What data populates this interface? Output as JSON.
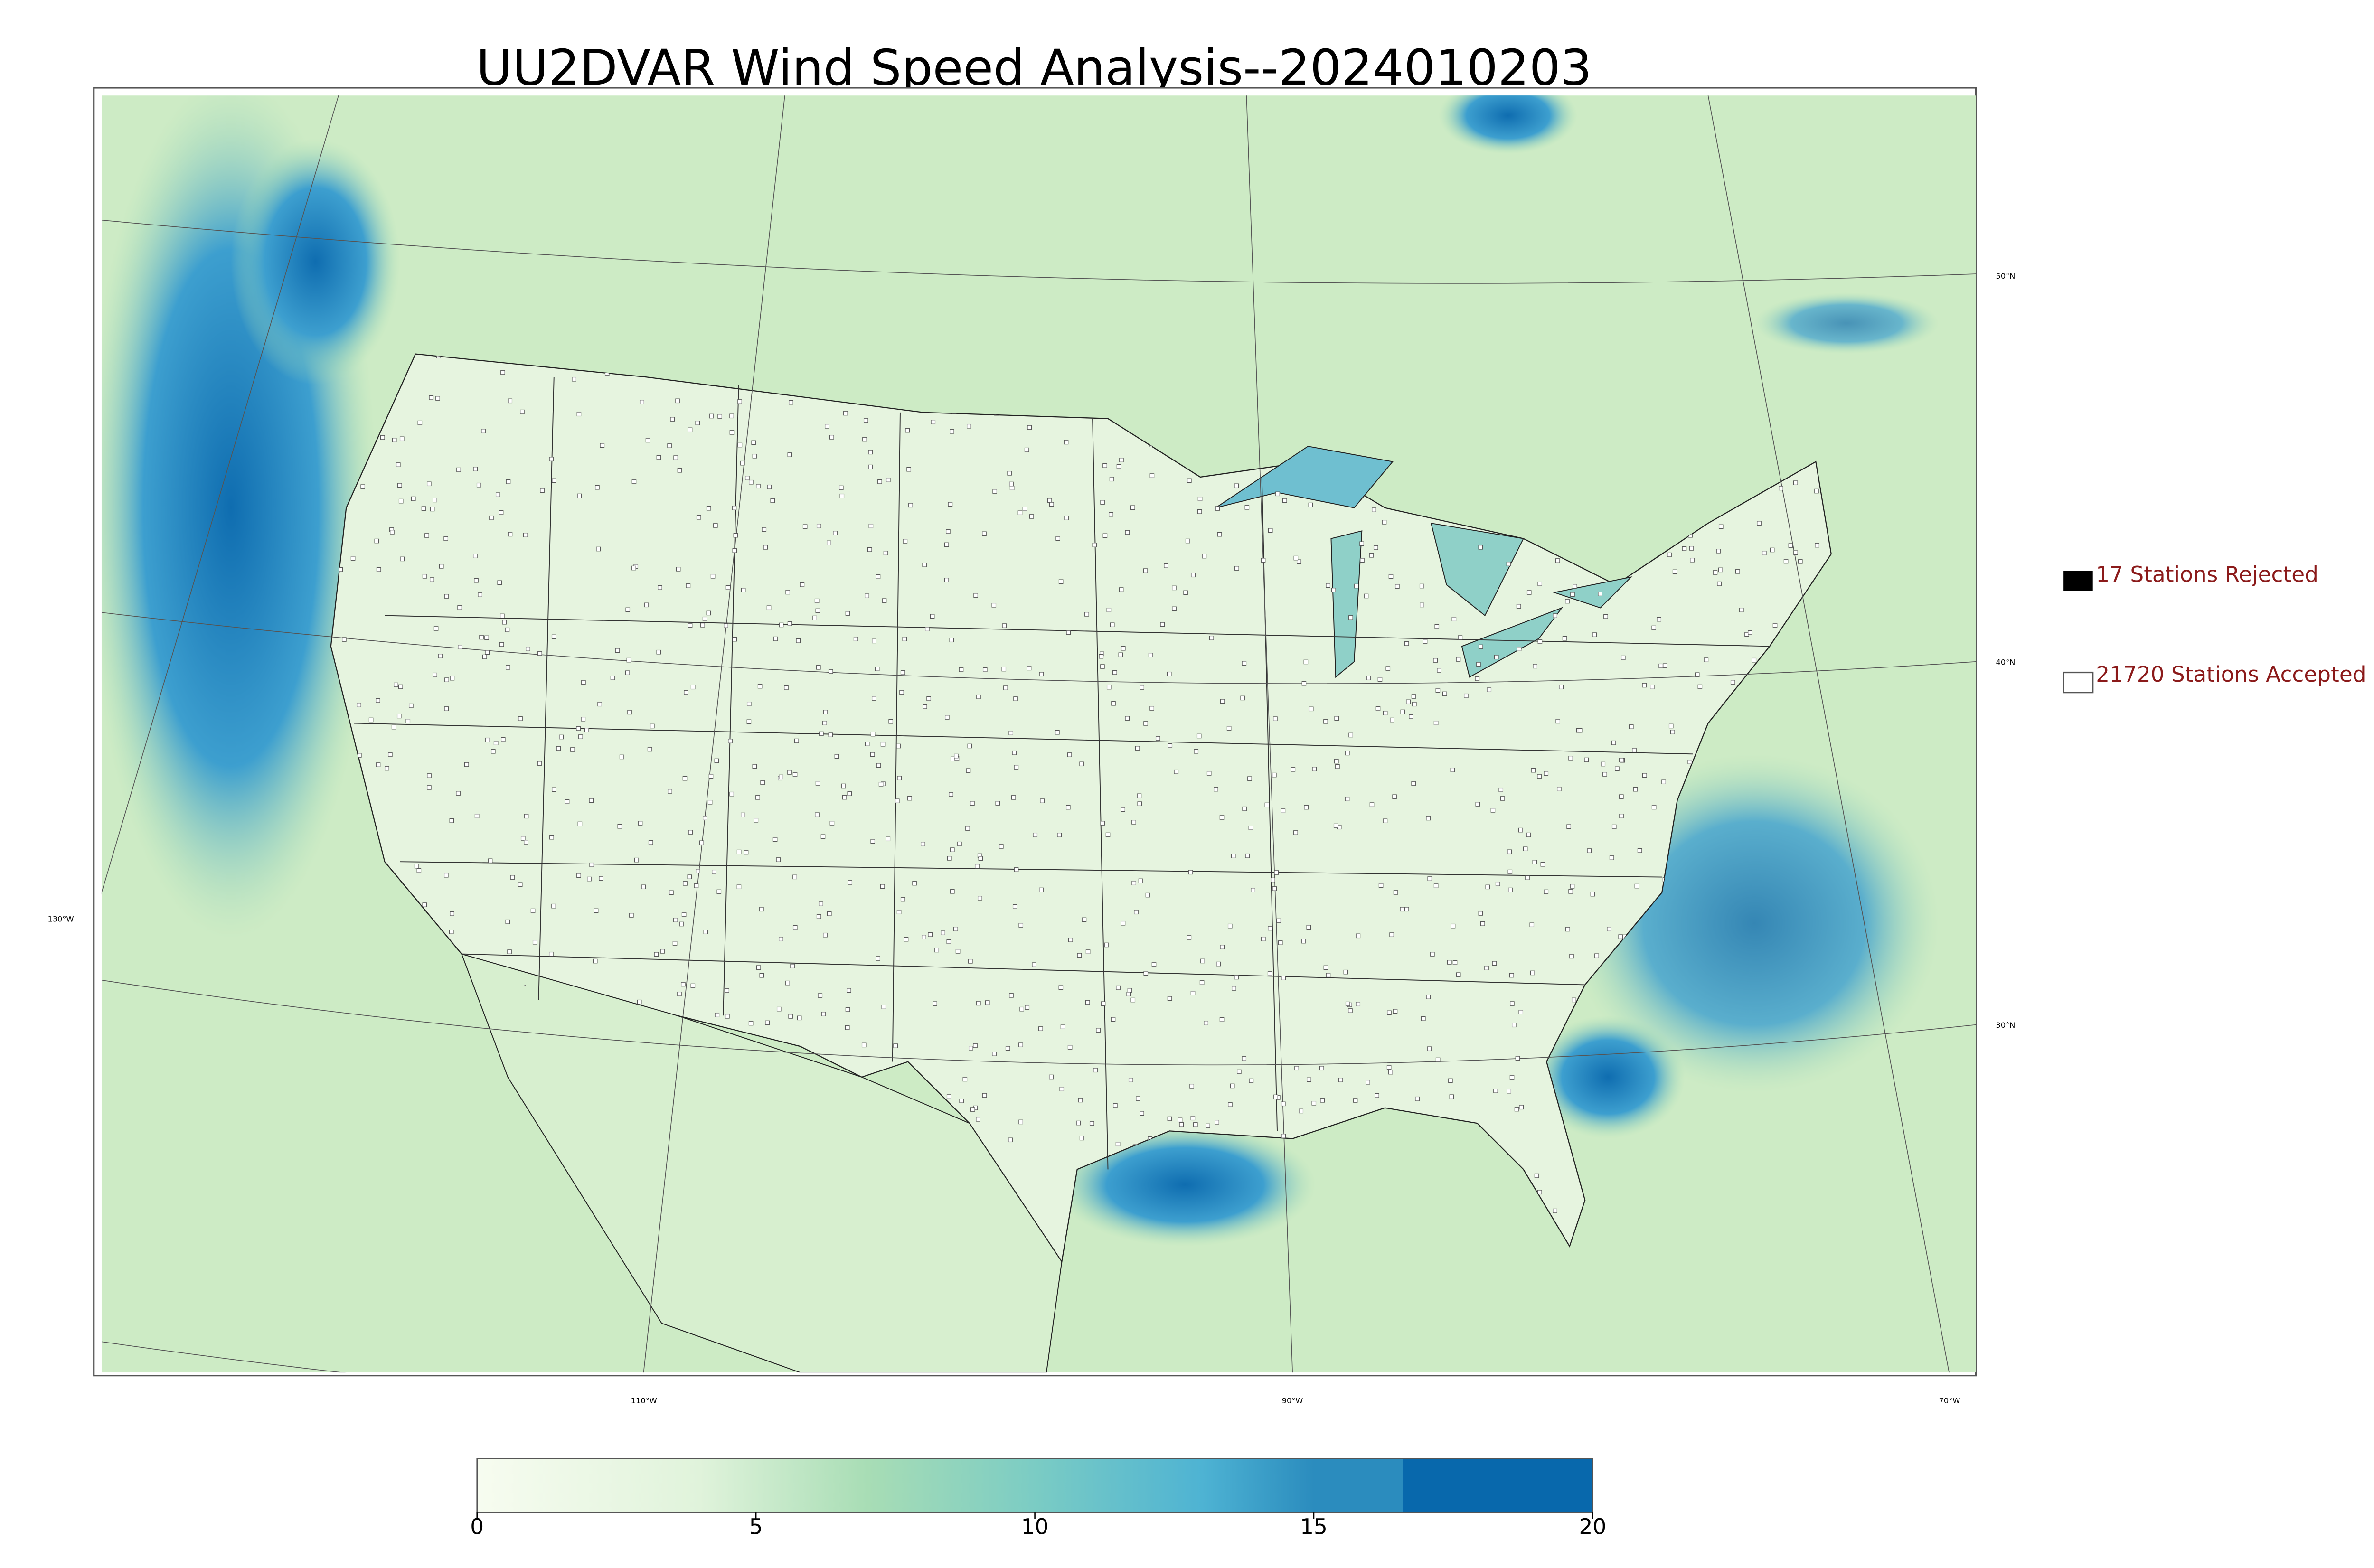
{
  "title": "UU2DVAR Wind Speed Analysis--2024010203",
  "map": {
    "lat_labels": [
      "50°N",
      "40°N",
      "30°N"
    ],
    "lon_labels": [
      "130°W",
      "110°W",
      "90°W",
      "70°W"
    ]
  },
  "legend": {
    "rejected": "17 Stations Rejected",
    "accepted": "21720 Stations Accepted"
  },
  "colorbar": {
    "range": [
      0,
      20
    ],
    "ticks": [
      0,
      5,
      10,
      15,
      20
    ]
  }
}
